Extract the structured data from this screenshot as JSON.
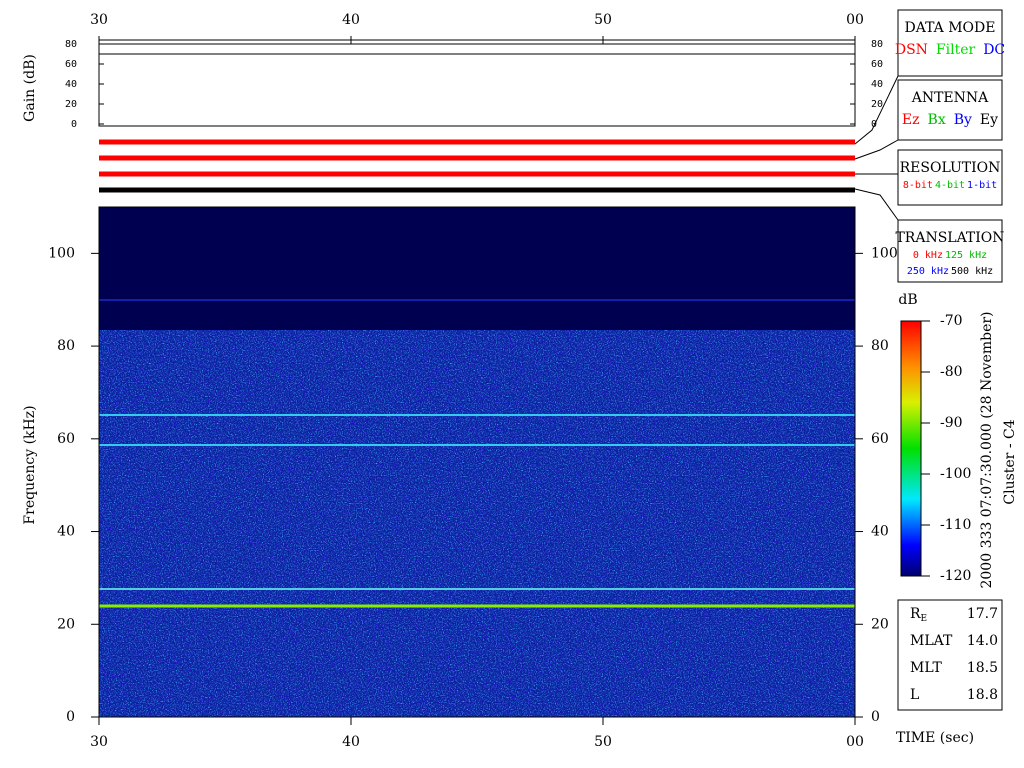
{
  "chart_data": [
    {
      "type": "line",
      "ylabel": "Gain (dB)",
      "x": [
        30,
        60
      ],
      "values": [
        70,
        70
      ],
      "color": "#000000",
      "xlim": [
        30,
        60
      ],
      "xticks": [
        30,
        40,
        50,
        {
          "value": 60,
          "label": "00"
        }
      ],
      "ylim": [
        0,
        80
      ],
      "yticks": [
        0,
        20,
        40,
        60,
        80
      ]
    },
    {
      "type": "heatmap",
      "ylabel": "Frequency (kHz)",
      "xlabel": "TIME (sec)",
      "xlim": [
        30,
        60
      ],
      "xticks": [
        30,
        40,
        50,
        {
          "value": 60,
          "label": "00"
        }
      ],
      "ylim": [
        0,
        110
      ],
      "yticks": [
        0,
        20,
        40,
        60,
        80,
        100
      ],
      "colorbar": {
        "label": "dB",
        "lim": [
          -120,
          -70
        ],
        "ticks": [
          -70,
          -80,
          -90,
          -100,
          -110,
          -120
        ]
      }
    }
  ],
  "header": {
    "date": "2000 333 07:07:30.000 (28 November)",
    "spacecraft": "Cluster - C4"
  },
  "status_bars": [
    "#ff0000",
    "#ff0000",
    "#ff0000",
    "#000000"
  ],
  "legend_boxes": [
    {
      "title": "DATA MODE",
      "items": [
        {
          "text": "DSN",
          "color": "#ff0000"
        },
        {
          "text": "Filter",
          "color": "#00dd00"
        },
        {
          "text": "DC",
          "color": "#0000ff"
        }
      ]
    },
    {
      "title": "ANTENNA",
      "items": [
        {
          "text": "Ez",
          "color": "#ff0000"
        },
        {
          "text": "Bx",
          "color": "#00bb00"
        },
        {
          "text": "By",
          "color": "#0000ff"
        },
        {
          "text": "Ey",
          "color": "#000000"
        }
      ]
    },
    {
      "title": "RESOLUTION",
      "items": [
        {
          "text": "8-bit",
          "color": "#ff0000"
        },
        {
          "text": "4-bit",
          "color": "#00bb00"
        },
        {
          "text": "1-bit",
          "color": "#0000ff"
        }
      ]
    },
    {
      "title": "TRANSLATION",
      "items": [
        {
          "text": "0 kHz",
          "color": "#ff0000"
        },
        {
          "text": "125 kHz",
          "color": "#00bb00"
        },
        {
          "text": "250 kHz",
          "color": "#0000ff"
        },
        {
          "text": "500 kHz",
          "color": "#000000"
        }
      ]
    }
  ],
  "orbit": [
    {
      "label": "R",
      "sub": "E",
      "value": "17.7"
    },
    {
      "label": "MLAT",
      "value": "14.0"
    },
    {
      "label": "MLT",
      "value": "18.5"
    },
    {
      "label": "L",
      "value": "18.8"
    }
  ]
}
